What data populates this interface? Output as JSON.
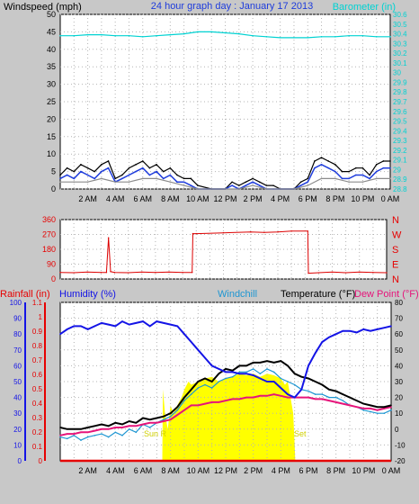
{
  "chart_data": [
    {
      "type": "line",
      "title": "24 hour graph day : January 17 2013",
      "ylabel_left": "Windspeed (mph)",
      "ylabel_right": "Barometer (in)",
      "x_ticks": [
        "2 AM",
        "4 AM",
        "6 AM",
        "8 AM",
        "10 AM",
        "12 PM",
        "2 PM",
        "4 PM",
        "6 PM",
        "8 PM",
        "10 PM",
        "0 AM"
      ],
      "xlim": [
        0,
        24
      ],
      "ylim_left": [
        0,
        50
      ],
      "ylim_right": [
        28.8,
        30.6
      ],
      "y_ticks_left": [
        0,
        5,
        10,
        15,
        20,
        25,
        30,
        35,
        40,
        45,
        50
      ],
      "y_ticks_right": [
        "28.8",
        "28.9",
        "29",
        "29.1",
        "29.2",
        "29.3",
        "29.4",
        "29.5",
        "29.6",
        "29.7",
        "29.8",
        "29.9",
        "30",
        "30.1",
        "30.2",
        "30.3",
        "30.4",
        "30.5",
        "30.6"
      ],
      "grid": true,
      "colors": {
        "gust": "#000000",
        "wind": "#1e3cdc",
        "wind_avg": "#8c8c8c",
        "barometer": "#00d2d2"
      },
      "series": [
        {
          "key": "barometer",
          "axis": "right",
          "x": [
            0,
            1,
            2,
            3,
            4,
            5,
            6,
            7,
            8,
            9,
            10,
            11,
            12,
            13,
            14,
            15,
            16,
            17,
            18,
            19,
            20,
            21,
            22,
            23,
            24
          ],
          "values": [
            30.38,
            30.38,
            30.39,
            30.39,
            30.38,
            30.38,
            30.37,
            30.38,
            30.39,
            30.4,
            30.42,
            30.42,
            30.41,
            30.4,
            30.38,
            30.37,
            30.36,
            30.36,
            30.36,
            30.37,
            30.37,
            30.38,
            30.38,
            30.37,
            30.37
          ]
        },
        {
          "key": "gust",
          "axis": "left",
          "x": [
            0,
            0.5,
            1,
            1.5,
            2,
            2.5,
            3,
            3.5,
            4,
            4.5,
            5,
            5.5,
            6,
            6.5,
            7,
            7.5,
            8,
            8.5,
            9,
            9.5,
            10,
            11,
            12,
            12.5,
            13,
            13.5,
            14,
            14.5,
            15,
            15.5,
            16,
            17,
            17.5,
            18,
            18.5,
            19,
            19.5,
            20,
            20.5,
            21,
            21.5,
            22,
            22.5,
            23,
            23.5,
            24
          ],
          "values": [
            4,
            6,
            5,
            7,
            6,
            5,
            7,
            8,
            3,
            4,
            6,
            7,
            8,
            6,
            7,
            5,
            6,
            4,
            3,
            3,
            1,
            0,
            0,
            2,
            1,
            2,
            3,
            2,
            1,
            1,
            0,
            0,
            2,
            3,
            8,
            9,
            8,
            7,
            5,
            5,
            6,
            6,
            4,
            7,
            8,
            8
          ]
        },
        {
          "key": "wind",
          "axis": "left",
          "x": [
            0,
            0.5,
            1,
            1.5,
            2,
            2.5,
            3,
            3.5,
            4,
            4.5,
            5,
            5.5,
            6,
            6.5,
            7,
            7.5,
            8,
            8.5,
            9,
            9.5,
            10,
            11,
            12,
            12.5,
            13,
            13.5,
            14,
            14.5,
            15,
            15.5,
            16,
            17,
            17.5,
            18,
            18.5,
            19,
            19.5,
            20,
            20.5,
            21,
            21.5,
            22,
            22.5,
            23,
            23.5,
            24
          ],
          "values": [
            3,
            4,
            3,
            5,
            4,
            3,
            5,
            6,
            2,
            3,
            4,
            5,
            6,
            4,
            5,
            3,
            4,
            2,
            2,
            1,
            0,
            0,
            0,
            1,
            0,
            1,
            2,
            1,
            0,
            0,
            0,
            0,
            1,
            2,
            6,
            7,
            6,
            5,
            3,
            3,
            4,
            4,
            3,
            5,
            6,
            6
          ]
        },
        {
          "key": "wind_avg",
          "axis": "left",
          "x": [
            0,
            1,
            2,
            3,
            4,
            5,
            6,
            7,
            8,
            9,
            10,
            11,
            12,
            13,
            14,
            15,
            16,
            17,
            18,
            19,
            20,
            21,
            22,
            23,
            24
          ],
          "values": [
            2,
            2,
            2,
            3,
            2,
            2,
            3,
            3,
            2,
            1,
            0,
            0,
            0,
            0,
            1,
            0,
            0,
            0,
            1,
            3,
            3,
            2,
            2,
            3,
            3
          ]
        }
      ]
    },
    {
      "type": "line",
      "ylabel_left": "",
      "ylabel_right": "",
      "x_ticks": [],
      "xlim": [
        0,
        24
      ],
      "ylim": [
        0,
        360
      ],
      "y_ticks": [
        0,
        90,
        180,
        270,
        360
      ],
      "y_ticks_right": [
        "N",
        "E",
        "S",
        "W",
        "N"
      ],
      "grid": true,
      "colors": {
        "direction": "#dc0000"
      },
      "series": [
        {
          "key": "direction",
          "x": [
            0,
            1,
            2,
            3,
            3.4,
            3.55,
            3.7,
            4,
            5,
            6,
            7,
            8,
            9,
            9.7,
            9.75,
            10,
            12,
            14,
            15,
            16,
            17,
            18.2,
            18.25,
            19,
            20,
            21,
            22,
            23,
            24
          ],
          "values": [
            40,
            38,
            42,
            40,
            40,
            250,
            45,
            40,
            38,
            42,
            40,
            42,
            40,
            40,
            275,
            275,
            280,
            285,
            282,
            285,
            290,
            290,
            35,
            38,
            42,
            38,
            42,
            40,
            38
          ]
        }
      ]
    },
    {
      "type": "line",
      "label_rainfall": "Rainfall (in)",
      "label_humidity": "Humidity (%)",
      "label_windchill": "Windchill",
      "label_temperature": "Temperature (°F)",
      "label_dewpoint": "Dew Point (°F)",
      "sunrise_label": "Sun R",
      "sunset_label": "Set",
      "x_ticks": [
        "2 AM",
        "4 AM",
        "6 AM",
        "8 AM",
        "10 AM",
        "12 PM",
        "2 PM",
        "4 PM",
        "6 PM",
        "8 PM",
        "10 PM",
        "0 AM"
      ],
      "xlim": [
        0,
        24
      ],
      "ylim_humidity": [
        0,
        100
      ],
      "ylim_rain": [
        0,
        1.1
      ],
      "ylim_temp": [
        -20,
        80
      ],
      "y_ticks_humidity": [
        0,
        10,
        20,
        30,
        40,
        50,
        60,
        70,
        80,
        90,
        100
      ],
      "y_ticks_rain": [
        "0",
        "0.1",
        "0.2",
        "0.3",
        "0.4",
        "0.5",
        "0.6",
        "0.7",
        "0.8",
        "0.9",
        "1",
        "1.1"
      ],
      "y_ticks_temp": [
        -20,
        -10,
        0,
        10,
        20,
        30,
        40,
        50,
        60,
        70,
        80
      ],
      "grid": true,
      "colors": {
        "humidity": "#1414e6",
        "temperature": "#000000",
        "dewpoint": "#e6147a",
        "windchill": "#1e96d2",
        "solar": "#ffff00",
        "rain": "#e60000",
        "rainfall_axis": "#e60000",
        "humidity_axis": "#1414e6"
      },
      "solar": {
        "x": [
          7.4,
          7.45,
          7.6,
          7.8,
          8,
          8.2,
          8.5,
          8.8,
          9,
          9.3,
          9.5,
          10,
          10.5,
          11,
          11.5,
          12,
          12.5,
          13,
          13.5,
          14,
          14.5,
          15,
          15.5,
          16,
          16.3,
          16.5,
          16.7,
          16.9,
          17,
          17.05
        ],
        "values": [
          0,
          45,
          30,
          20,
          35,
          30,
          35,
          40,
          45,
          50,
          48,
          50,
          52,
          53,
          50,
          52,
          53,
          55,
          54,
          55,
          53,
          55,
          54,
          52,
          48,
          50,
          40,
          30,
          10,
          0
        ]
      },
      "series": [
        {
          "key": "humidity",
          "axis": "humidity",
          "x": [
            0,
            0.5,
            1,
            1.5,
            2,
            2.5,
            3,
            3.5,
            4,
            4.5,
            5,
            5.5,
            6,
            6.5,
            7,
            7.5,
            8,
            8.5,
            9,
            9.5,
            10,
            10.5,
            11,
            11.5,
            12,
            12.5,
            13,
            13.5,
            14,
            14.5,
            15,
            15.5,
            16,
            16.5,
            17,
            17.5,
            18,
            18.5,
            19,
            19.5,
            20,
            20.5,
            21,
            21.5,
            22,
            22.5,
            23,
            23.5,
            24
          ],
          "values": [
            80,
            83,
            85,
            85,
            83,
            85,
            87,
            86,
            85,
            88,
            86,
            87,
            88,
            85,
            88,
            87,
            86,
            85,
            80,
            75,
            70,
            65,
            60,
            58,
            56,
            56,
            55,
            55,
            54,
            52,
            50,
            50,
            46,
            42,
            40,
            45,
            60,
            68,
            75,
            78,
            80,
            82,
            82,
            81,
            83,
            82,
            83,
            84,
            85
          ]
        },
        {
          "key": "temperature",
          "axis": "temp",
          "x": [
            0,
            0.5,
            1,
            1.5,
            2,
            2.5,
            3,
            3.5,
            4,
            4.5,
            5,
            5.5,
            6,
            6.5,
            7,
            7.5,
            8,
            8.5,
            9,
            9.5,
            10,
            10.5,
            11,
            11.5,
            12,
            12.5,
            13,
            13.5,
            14,
            14.5,
            15,
            15.5,
            16,
            16.5,
            17,
            17.5,
            18,
            18.5,
            19,
            19.5,
            20,
            20.5,
            21,
            21.5,
            22,
            22.5,
            23,
            23.5,
            24
          ],
          "values": [
            1,
            0,
            0,
            0,
            1,
            2,
            3,
            2,
            4,
            3,
            5,
            4,
            7,
            6,
            7,
            8,
            10,
            14,
            20,
            25,
            30,
            32,
            30,
            35,
            38,
            37,
            40,
            40,
            42,
            42,
            43,
            42,
            43,
            40,
            35,
            33,
            32,
            30,
            28,
            25,
            24,
            22,
            20,
            18,
            16,
            15,
            14,
            14,
            15
          ]
        },
        {
          "key": "dewpoint",
          "axis": "temp",
          "x": [
            0,
            0.5,
            1,
            1.5,
            2,
            2.5,
            3,
            3.5,
            4,
            4.5,
            5,
            5.5,
            6,
            6.5,
            7,
            7.5,
            8,
            8.5,
            9,
            9.5,
            10,
            10.5,
            11,
            11.5,
            12,
            12.5,
            13,
            13.5,
            14,
            14.5,
            15,
            15.5,
            16,
            16.5,
            17,
            17.5,
            18,
            18.5,
            19,
            19.5,
            20,
            20.5,
            21,
            21.5,
            22,
            22.5,
            23,
            23.5,
            24
          ],
          "values": [
            -4,
            -3,
            -3,
            -2,
            -2,
            -1,
            0,
            0,
            1,
            1,
            2,
            2,
            3,
            4,
            4,
            5,
            6,
            9,
            12,
            15,
            15,
            16,
            17,
            17,
            18,
            19,
            19,
            20,
            20,
            21,
            21,
            22,
            21,
            20,
            20,
            20,
            20,
            19,
            19,
            18,
            17,
            16,
            15,
            14,
            13,
            13,
            12,
            13,
            14
          ]
        },
        {
          "key": "windchill",
          "axis": "temp",
          "x": [
            0,
            0.5,
            1,
            1.5,
            2,
            2.5,
            3,
            3.5,
            4,
            4.5,
            5,
            5.5,
            6,
            6.5,
            7,
            7.5,
            8,
            8.5,
            9,
            9.5,
            10,
            10.5,
            11,
            11.5,
            12,
            12.5,
            13,
            13.5,
            14,
            14.5,
            15,
            15.5,
            16,
            16.5,
            17,
            17.5,
            18,
            18.5,
            19,
            19.5,
            20,
            20.5,
            21,
            21.5,
            22,
            22.5,
            23,
            23.5,
            24
          ],
          "values": [
            -5,
            -6,
            -4,
            -7,
            -5,
            -4,
            -3,
            -5,
            -2,
            -4,
            0,
            -2,
            3,
            1,
            4,
            6,
            8,
            12,
            18,
            22,
            26,
            28,
            26,
            30,
            32,
            33,
            36,
            36,
            38,
            35,
            38,
            36,
            32,
            30,
            28,
            25,
            24,
            22,
            22,
            20,
            20,
            18,
            15,
            14,
            12,
            11,
            10,
            10,
            12
          ]
        },
        {
          "key": "rain",
          "axis": "rain",
          "x": [
            0,
            24
          ],
          "values": [
            0,
            0
          ]
        }
      ]
    }
  ]
}
